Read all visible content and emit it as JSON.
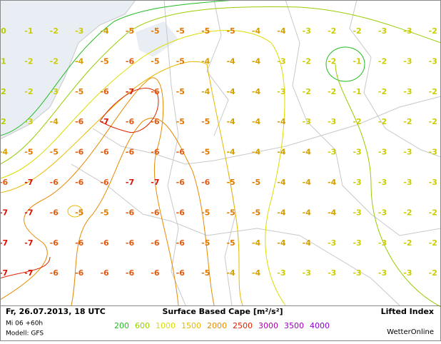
{
  "map": {
    "rows": [
      [
        0,
        -1,
        -2,
        -3,
        -4,
        -5,
        -5,
        -5,
        -5,
        -5,
        -4,
        -4,
        -3,
        -2,
        -2,
        -3,
        -3,
        -2
      ],
      [
        1,
        -2,
        -2,
        -4,
        -5,
        -6,
        -5,
        -5,
        -4,
        -4,
        -4,
        -3,
        -2,
        -2,
        -1,
        -2,
        -3,
        -3
      ],
      [
        2,
        -2,
        -3,
        -5,
        -6,
        -7,
        -6,
        -5,
        -4,
        -4,
        -4,
        -3,
        -2,
        -2,
        -1,
        -2,
        -3,
        -2
      ],
      [
        2,
        -3,
        -4,
        -6,
        -7,
        -6,
        -6,
        -5,
        -5,
        -4,
        -4,
        -4,
        -3,
        -3,
        -2,
        -2,
        -2,
        -2
      ],
      [
        -4,
        -5,
        -5,
        -6,
        -6,
        -6,
        -6,
        -6,
        -5,
        -4,
        -4,
        -4,
        -4,
        -3,
        -3,
        -3,
        -3,
        -3
      ],
      [
        -6,
        -7,
        -6,
        -6,
        -6,
        -7,
        -7,
        -6,
        -6,
        -5,
        -5,
        -4,
        -4,
        -4,
        -3,
        -3,
        -3,
        -3
      ],
      [
        -7,
        -7,
        -6,
        -5,
        -5,
        -6,
        -6,
        -6,
        -5,
        -5,
        -5,
        -4,
        -4,
        -4,
        -3,
        -3,
        -2,
        -2
      ],
      [
        -7,
        -7,
        -6,
        -6,
        -6,
        -6,
        -6,
        -6,
        -5,
        -5,
        -4,
        -4,
        -4,
        -3,
        -3,
        -3,
        -2,
        -2
      ],
      [
        -7,
        -7,
        -6,
        -6,
        -6,
        -6,
        -6,
        -6,
        -5,
        -4,
        -4,
        -3,
        -3,
        -3,
        -3,
        -3,
        -3,
        -2
      ]
    ]
  },
  "footer": {
    "date": "Fr, 26.07.2013, 18 UTC",
    "run": "Mi 06 +60h",
    "model": "Modell: GFS",
    "title": "Surface Based Cape [m²/s²]",
    "index": "Lifted Index",
    "brand": "WetterOnline"
  },
  "legend": {
    "levels": [
      {
        "value": 200,
        "color": "#22bb22"
      },
      {
        "value": 600,
        "color": "#99cc00"
      },
      {
        "value": 1000,
        "color": "#dddd00"
      },
      {
        "value": 1500,
        "color": "#e6b800"
      },
      {
        "value": 2000,
        "color": "#e68a00"
      },
      {
        "value": 2500,
        "color": "#dd2200"
      },
      {
        "value": 3000,
        "color": "#aa00aa"
      },
      {
        "value": 3500,
        "color": "#9900bb"
      },
      {
        "value": 4000,
        "color": "#8800cc"
      }
    ]
  }
}
